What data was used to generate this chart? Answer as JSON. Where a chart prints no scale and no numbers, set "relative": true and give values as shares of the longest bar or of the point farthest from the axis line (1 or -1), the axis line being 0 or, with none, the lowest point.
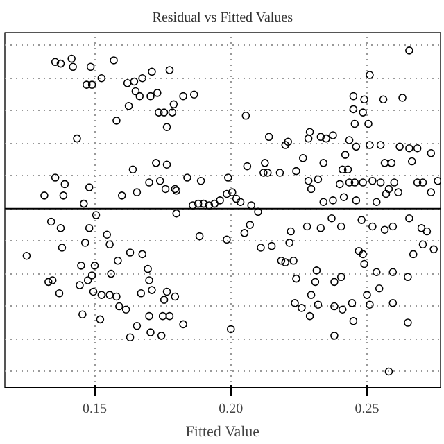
{
  "chart_data": {
    "type": "scatter",
    "title": "Residual vs Fitted Values",
    "xlabel": "Fitted Value",
    "relative": true,
    "tick_labels": "x",
    "grid": true,
    "marker": "circle",
    "xlim": [
      0.117,
      0.277
    ],
    "xticks": [
      {
        "value": 0.15,
        "label": "0.15"
      },
      {
        "value": 0.2,
        "label": "0.20"
      },
      {
        "value": 0.25,
        "label": "0.25"
      }
    ],
    "ref_lines": [
      {
        "axis": "y",
        "value": 0,
        "color": "#000000"
      }
    ],
    "series": [
      {
        "color": "#000000",
        "x": [
          0.1355,
          0.1375,
          0.1415,
          0.142,
          0.1485,
          0.157,
          0.147,
          0.149,
          0.1525,
          0.162,
          0.1645,
          0.1675,
          0.171,
          0.1775,
          0.165,
          0.1665,
          0.1705,
          0.173,
          0.1625,
          0.158,
          0.1735,
          0.1755,
          0.1785,
          0.179,
          0.1765,
          0.1825,
          0.1865,
          0.1435,
          0.2055,
          0.2655,
          0.251,
          0.245,
          0.249,
          0.256,
          0.263,
          0.245,
          0.2485,
          0.2455,
          0.2505,
          0.229,
          0.233,
          0.2285,
          0.235,
          0.2375,
          0.214,
          0.221,
          0.22,
          0.2435,
          0.246,
          0.251,
          0.255,
          0.262,
          0.2655,
          0.2685,
          0.2735,
          0.2665,
          0.242,
          0.2565,
          0.259,
          0.2265,
          0.234,
          0.2125,
          0.206,
          0.1725,
          0.1765,
          0.184,
          0.164,
          0.1355,
          0.139,
          0.1315,
          0.1385,
          0.148,
          0.146,
          0.16,
          0.1655,
          0.17,
          0.174,
          0.176,
          0.1795,
          0.18,
          0.189,
          0.199,
          0.212,
          0.2135,
          0.218,
          0.224,
          0.2285,
          0.2295,
          0.232,
          0.241,
          0.243,
          0.24,
          0.2435,
          0.2455,
          0.2485,
          0.252,
          0.255,
          0.258,
          0.26,
          0.2685,
          0.2705,
          0.2735,
          0.276,
          0.234,
          0.2375,
          0.2415,
          0.246,
          0.2535,
          0.257,
          0.2615,
          0.186,
          0.188,
          0.19,
          0.192,
          0.194,
          0.196,
          0.1985,
          0.2005,
          0.202,
          0.2035,
          0.2075,
          0.21,
          0.134,
          0.1375,
          0.1505,
          0.138,
          0.125,
          0.148,
          0.1545,
          0.1555,
          0.1465,
          0.15,
          0.149,
          0.145,
          0.133,
          0.1345,
          0.137,
          0.1445,
          0.1475,
          0.1495,
          0.1525,
          0.1555,
          0.156,
          0.1585,
          0.163,
          0.1675,
          0.1695,
          0.167,
          0.17,
          0.171,
          0.158,
          0.159,
          0.1615,
          0.1455,
          0.152,
          0.17,
          0.1755,
          0.1765,
          0.1795,
          0.175,
          0.1775,
          0.1825,
          0.1655,
          0.1705,
          0.1745,
          0.163,
          0.2,
          0.18,
          0.1885,
          0.1985,
          0.205,
          0.207,
          0.211,
          0.215,
          0.2215,
          0.22,
          0.223,
          0.224,
          0.2185,
          0.222,
          0.228,
          0.233,
          0.237,
          0.2405,
          0.248,
          0.252,
          0.2565,
          0.2595,
          0.2655,
          0.27,
          0.272,
          0.2705,
          0.267,
          0.247,
          0.2485,
          0.2535,
          0.2595,
          0.249,
          0.265,
          0.2545,
          0.238,
          0.231,
          0.2405,
          0.2295,
          0.2235,
          0.226,
          0.232,
          0.238,
          0.2445,
          0.25,
          0.251,
          0.2595,
          0.241,
          0.229,
          0.245,
          0.238,
          0.2745,
          0.2315,
          0.265,
          0.258
        ],
        "values": [
          0.9,
          0.89,
          0.92,
          0.87,
          0.87,
          0.91,
          0.76,
          0.76,
          0.8,
          0.77,
          0.78,
          0.8,
          0.84,
          0.85,
          0.72,
          0.69,
          0.69,
          0.71,
          0.63,
          0.54,
          0.59,
          0.59,
          0.59,
          0.64,
          0.5,
          0.69,
          0.7,
          0.43,
          0.57,
          0.97,
          0.82,
          0.69,
          0.67,
          0.67,
          0.68,
          0.61,
          0.59,
          0.52,
          0.52,
          0.47,
          0.44,
          0.43,
          0.43,
          0.45,
          0.44,
          0.41,
          0.39,
          0.42,
          0.38,
          0.39,
          0.39,
          0.38,
          0.37,
          0.37,
          0.34,
          0.29,
          0.33,
          0.28,
          0.28,
          0.31,
          0.28,
          0.28,
          0.26,
          0.28,
          0.27,
          0.19,
          0.24,
          0.19,
          0.15,
          0.08,
          0.08,
          0.13,
          0.03,
          0.08,
          0.1,
          0.16,
          0.17,
          0.12,
          0.12,
          0.11,
          0.17,
          0.19,
          0.22,
          0.22,
          0.22,
          0.23,
          0.17,
          0.12,
          0.18,
          0.24,
          0.24,
          0.15,
          0.16,
          0.16,
          0.16,
          0.17,
          0.16,
          0.12,
          0.16,
          0.16,
          0.16,
          0.1,
          0.17,
          0.04,
          0.05,
          0.07,
          0.05,
          0.04,
          0.09,
          0.1,
          0.02,
          0.03,
          0.03,
          0.02,
          0.03,
          0.05,
          0.09,
          0.1,
          0.06,
          0.04,
          0.02,
          -0.02,
          -0.08,
          -0.12,
          -0.04,
          -0.24,
          -0.29,
          -0.12,
          -0.16,
          -0.22,
          -0.21,
          -0.35,
          -0.41,
          -0.35,
          -0.45,
          -0.44,
          -0.52,
          -0.47,
          -0.44,
          -0.51,
          -0.53,
          -0.53,
          -0.4,
          -0.32,
          -0.27,
          -0.28,
          -0.37,
          -0.52,
          -0.44,
          -0.5,
          -0.54,
          -0.6,
          -0.62,
          -0.65,
          -0.68,
          -0.66,
          -0.56,
          -0.51,
          -0.54,
          -0.66,
          -0.66,
          -0.71,
          -0.72,
          -0.76,
          -0.78,
          -0.79,
          -0.74,
          -0.03,
          -0.17,
          -0.19,
          -0.15,
          -0.1,
          -0.24,
          -0.23,
          -0.21,
          -0.33,
          -0.32,
          -0.43,
          -0.32,
          -0.14,
          -0.11,
          -0.12,
          -0.06,
          -0.11,
          -0.07,
          -0.11,
          -0.13,
          -0.11,
          -0.06,
          -0.12,
          -0.14,
          -0.22,
          -0.28,
          -0.26,
          -0.28,
          -0.39,
          -0.39,
          -0.34,
          -0.42,
          -0.49,
          -0.45,
          -0.45,
          -0.42,
          -0.53,
          -0.58,
          -0.61,
          -0.59,
          -0.6,
          -0.58,
          -0.53,
          -0.59,
          -0.58,
          -0.62,
          -0.66,
          -0.69,
          -0.78,
          -0.25,
          -0.38,
          -0.7,
          -1.0
        ]
      }
    ]
  }
}
